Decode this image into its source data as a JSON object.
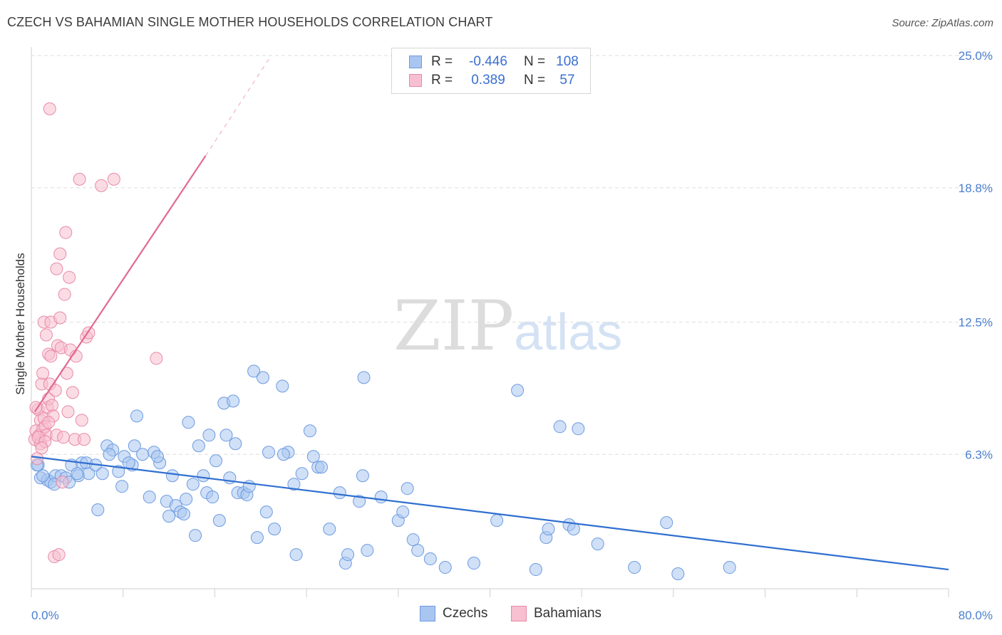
{
  "title": "CZECH VS BAHAMIAN SINGLE MOTHER HOUSEHOLDS CORRELATION CHART",
  "source": "Source: ZipAtlas.com",
  "watermark": {
    "zip": "ZIP",
    "atlas": "atlas"
  },
  "legend": {
    "rows": [
      {
        "r_label": "R =",
        "r_value": "-0.446",
        "n_label": "N =",
        "n_value": "108",
        "color": "#a9c6f0",
        "border": "#6d9be0"
      },
      {
        "r_label": "R =",
        "r_value": "0.389",
        "n_label": "N =",
        "n_value": "57",
        "color": "#f7bfd0",
        "border": "#e88aa8"
      }
    ]
  },
  "bottom_legend": [
    {
      "label": "Czechs",
      "color": "#a9c6f0",
      "border": "#6d9be0"
    },
    {
      "label": "Bahamians",
      "color": "#f7bfd0",
      "border": "#e88aa8"
    }
  ],
  "chart_data": {
    "type": "scatter",
    "ylabel": "Single Mother Households",
    "xlim": [
      0,
      80
    ],
    "ylim": [
      0,
      25
    ],
    "x_tick_labels": [
      "0.0%",
      "80.0%"
    ],
    "y_ticks": [
      6.3,
      12.5,
      18.8,
      25.0
    ],
    "y_tick_labels": [
      "6.3%",
      "12.5%",
      "18.8%",
      "25.0%"
    ],
    "grid": true,
    "series": [
      {
        "name": "Czechs",
        "color": "#6d9be0",
        "fill": "#a9c6f0",
        "trend": {
          "x": [
            0,
            80
          ],
          "y": [
            6.2,
            0.9
          ],
          "color": "#2f6fd0"
        },
        "points": [
          [
            0.6,
            5.8
          ],
          [
            0.8,
            5.2
          ],
          [
            1.4,
            5.1
          ],
          [
            1.7,
            5.0
          ],
          [
            2.1,
            5.3
          ],
          [
            2.6,
            5.3
          ],
          [
            3.0,
            5.2
          ],
          [
            3.3,
            5.0
          ],
          [
            3.5,
            5.8
          ],
          [
            4.1,
            5.3
          ],
          [
            4.4,
            5.9
          ],
          [
            4.8,
            5.9
          ],
          [
            5.0,
            5.4
          ],
          [
            5.6,
            5.8
          ],
          [
            5.8,
            3.7
          ],
          [
            6.2,
            5.4
          ],
          [
            6.6,
            6.7
          ],
          [
            7.1,
            6.5
          ],
          [
            7.6,
            5.5
          ],
          [
            7.9,
            4.8
          ],
          [
            8.1,
            6.2
          ],
          [
            8.8,
            5.8
          ],
          [
            9.0,
            6.7
          ],
          [
            9.2,
            8.1
          ],
          [
            9.7,
            6.3
          ],
          [
            10.3,
            4.3
          ],
          [
            10.7,
            6.4
          ],
          [
            11.2,
            5.9
          ],
          [
            11.8,
            4.1
          ],
          [
            12.0,
            3.4
          ],
          [
            12.3,
            5.3
          ],
          [
            12.6,
            3.9
          ],
          [
            13.0,
            3.6
          ],
          [
            13.3,
            3.5
          ],
          [
            13.7,
            7.8
          ],
          [
            14.1,
            4.9
          ],
          [
            14.3,
            2.5
          ],
          [
            14.6,
            6.7
          ],
          [
            15.0,
            5.3
          ],
          [
            15.3,
            4.5
          ],
          [
            15.5,
            7.2
          ],
          [
            15.8,
            4.3
          ],
          [
            16.1,
            6.0
          ],
          [
            16.4,
            3.2
          ],
          [
            16.8,
            8.7
          ],
          [
            17.0,
            7.2
          ],
          [
            17.3,
            5.2
          ],
          [
            17.6,
            8.8
          ],
          [
            17.8,
            6.8
          ],
          [
            18.0,
            4.5
          ],
          [
            18.5,
            4.5
          ],
          [
            18.8,
            4.4
          ],
          [
            19.0,
            4.8
          ],
          [
            19.4,
            10.2
          ],
          [
            19.7,
            2.4
          ],
          [
            20.2,
            9.9
          ],
          [
            20.5,
            3.6
          ],
          [
            20.7,
            6.4
          ],
          [
            21.2,
            2.8
          ],
          [
            21.9,
            9.5
          ],
          [
            22.4,
            6.4
          ],
          [
            22.9,
            4.9
          ],
          [
            23.1,
            1.6
          ],
          [
            23.6,
            5.4
          ],
          [
            24.3,
            7.4
          ],
          [
            24.6,
            6.2
          ],
          [
            25.0,
            5.7
          ],
          [
            25.3,
            5.7
          ],
          [
            26.0,
            2.8
          ],
          [
            26.9,
            4.5
          ],
          [
            27.4,
            1.2
          ],
          [
            27.6,
            1.6
          ],
          [
            28.6,
            4.1
          ],
          [
            28.9,
            5.3
          ],
          [
            29.0,
            9.9
          ],
          [
            29.3,
            1.8
          ],
          [
            30.5,
            4.3
          ],
          [
            32.0,
            3.2
          ],
          [
            32.4,
            3.6
          ],
          [
            32.8,
            4.7
          ],
          [
            33.3,
            2.3
          ],
          [
            33.7,
            1.8
          ],
          [
            34.8,
            1.4
          ],
          [
            36.1,
            1.0
          ],
          [
            38.6,
            1.2
          ],
          [
            40.6,
            3.2
          ],
          [
            42.4,
            9.3
          ],
          [
            44.0,
            0.9
          ],
          [
            44.9,
            2.4
          ],
          [
            45.1,
            2.8
          ],
          [
            46.1,
            7.6
          ],
          [
            46.9,
            3.0
          ],
          [
            47.3,
            2.8
          ],
          [
            47.7,
            7.5
          ],
          [
            49.4,
            2.1
          ],
          [
            52.6,
            1.0
          ],
          [
            55.4,
            3.1
          ],
          [
            56.4,
            0.7
          ],
          [
            60.9,
            1.0
          ],
          [
            0.5,
            5.8
          ],
          [
            1.0,
            5.3
          ],
          [
            2.0,
            4.9
          ],
          [
            4.0,
            5.4
          ],
          [
            6.8,
            6.3
          ],
          [
            8.5,
            5.9
          ],
          [
            11.0,
            6.2
          ],
          [
            13.5,
            4.2
          ],
          [
            22.0,
            6.3
          ]
        ]
      },
      {
        "name": "Bahamians",
        "color": "#e88aa8",
        "fill": "#f7bfd0",
        "trend": {
          "x": [
            0.3,
            15.2
          ],
          "y": [
            8.3,
            20.3
          ],
          "dash_x": [
            15.2,
            20.8
          ],
          "dash_y": [
            20.3,
            24.9
          ],
          "color": "#e06a92"
        },
        "points": [
          [
            0.3,
            7.0
          ],
          [
            0.4,
            7.4
          ],
          [
            0.5,
            6.1
          ],
          [
            0.6,
            8.4
          ],
          [
            0.7,
            7.2
          ],
          [
            0.8,
            7.9
          ],
          [
            0.8,
            6.8
          ],
          [
            0.9,
            9.6
          ],
          [
            1.0,
            7.5
          ],
          [
            1.0,
            10.1
          ],
          [
            1.1,
            8.0
          ],
          [
            1.1,
            12.5
          ],
          [
            1.2,
            7.6
          ],
          [
            1.3,
            7.2
          ],
          [
            1.3,
            11.9
          ],
          [
            1.4,
            8.5
          ],
          [
            1.5,
            11.0
          ],
          [
            1.5,
            8.9
          ],
          [
            1.6,
            22.5
          ],
          [
            1.6,
            9.6
          ],
          [
            1.7,
            10.9
          ],
          [
            1.7,
            12.5
          ],
          [
            1.8,
            8.6
          ],
          [
            1.9,
            8.1
          ],
          [
            2.0,
            1.5
          ],
          [
            2.1,
            9.3
          ],
          [
            2.2,
            15.0
          ],
          [
            2.2,
            7.2
          ],
          [
            2.3,
            11.4
          ],
          [
            2.4,
            1.6
          ],
          [
            2.5,
            15.7
          ],
          [
            2.5,
            12.7
          ],
          [
            2.6,
            11.3
          ],
          [
            2.7,
            5.0
          ],
          [
            2.8,
            7.1
          ],
          [
            2.9,
            13.8
          ],
          [
            3.0,
            16.7
          ],
          [
            3.1,
            10.1
          ],
          [
            3.2,
            8.3
          ],
          [
            3.3,
            14.6
          ],
          [
            3.4,
            11.2
          ],
          [
            3.6,
            9.2
          ],
          [
            3.8,
            7.0
          ],
          [
            3.9,
            10.9
          ],
          [
            4.2,
            19.2
          ],
          [
            4.4,
            7.9
          ],
          [
            4.6,
            7.0
          ],
          [
            4.8,
            11.8
          ],
          [
            5.0,
            12.0
          ],
          [
            6.1,
            18.9
          ],
          [
            7.2,
            19.2
          ],
          [
            10.9,
            10.8
          ],
          [
            0.4,
            8.5
          ],
          [
            0.6,
            7.1
          ],
          [
            1.2,
            6.9
          ],
          [
            1.5,
            7.8
          ],
          [
            0.9,
            6.6
          ]
        ]
      }
    ]
  }
}
